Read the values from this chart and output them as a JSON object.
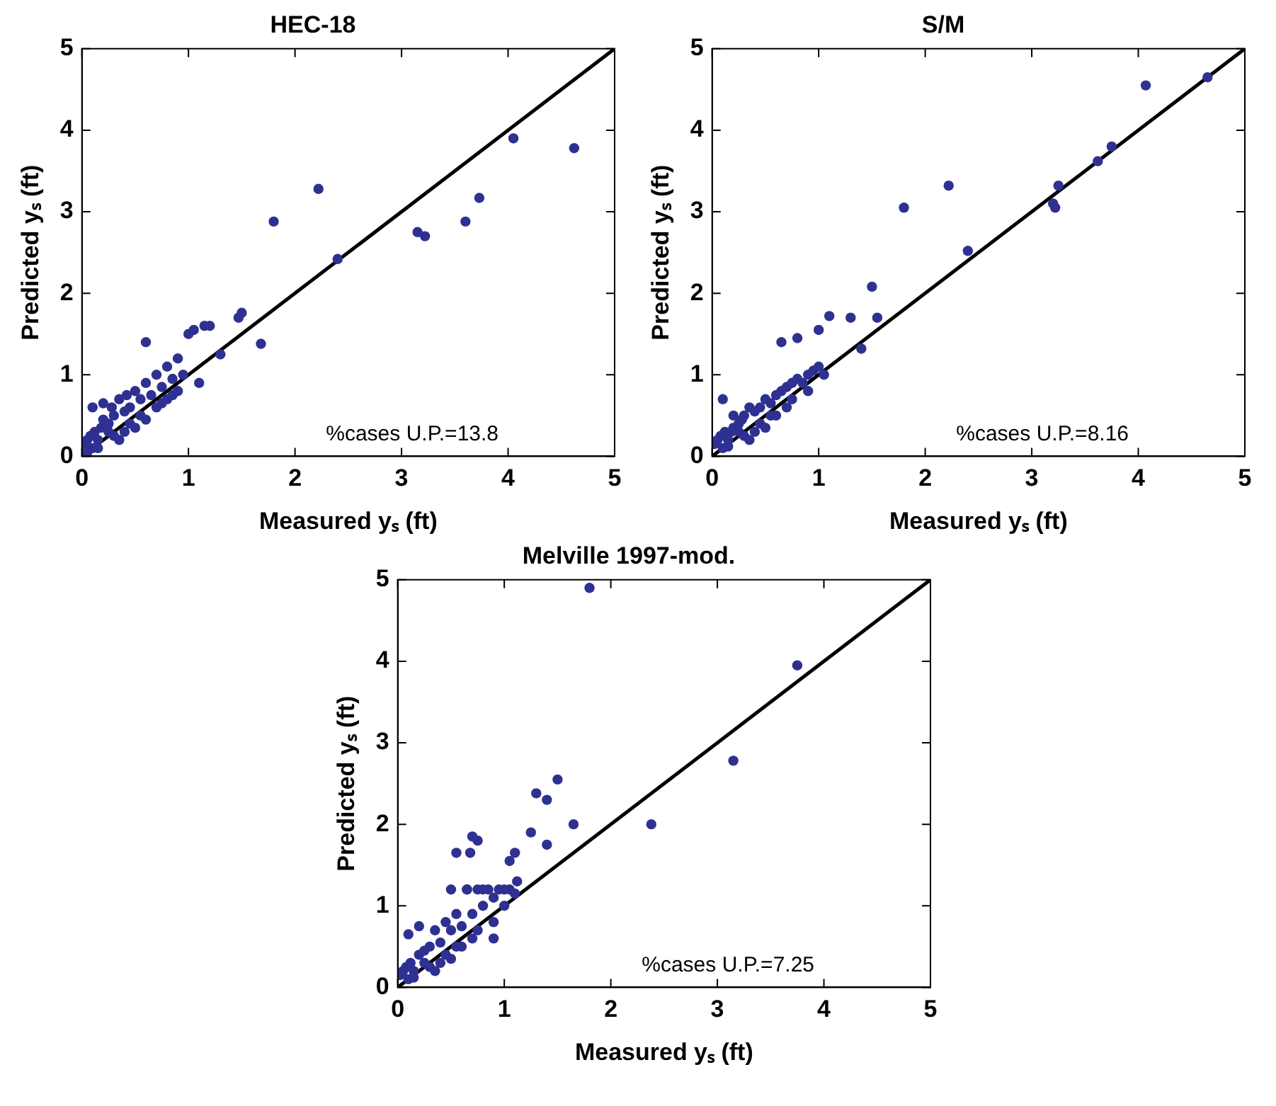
{
  "chart_data": [
    {
      "type": "scatter",
      "title": "HEC-18",
      "xlabel": "Measured yₛ (ft)",
      "ylabel": "Predicted yₛ (ft)",
      "xlim": [
        0,
        5
      ],
      "ylim": [
        0,
        5
      ],
      "xticks": [
        0,
        1,
        2,
        3,
        4,
        5
      ],
      "yticks": [
        0,
        1,
        2,
        3,
        4,
        5
      ],
      "grid": false,
      "marker": "circle",
      "annotations": [
        "%cases U.P.=13.8"
      ],
      "series": [
        {
          "type": "scatter",
          "color": "#2e3192",
          "x": [
            4.05,
            4.62,
            2.22,
            1.8,
            3.73,
            3.6,
            3.15,
            3.22,
            2.4,
            1.5,
            1.47,
            1.15,
            1.05,
            0.6,
            1.68,
            1.3,
            0.02,
            0.05,
            0.08,
            0.1,
            0.12,
            0.15,
            0.18,
            0.2,
            0.25,
            0.28,
            0.3,
            0.35,
            0.4,
            0.42,
            0.45,
            0.5,
            0.55,
            0.6,
            0.65,
            0.7,
            0.75,
            0.8,
            0.85,
            0.9,
            0.95,
            1.0,
            0.3,
            0.45,
            0.55,
            0.7,
            0.8,
            0.9,
            1.1,
            1.2,
            0.15,
            0.25,
            0.35,
            0.6,
            0.75,
            0.85,
            0.5,
            0.4,
            0.1,
            0.2,
            0.05
          ],
          "values": [
            3.9,
            3.78,
            3.28,
            2.88,
            3.17,
            2.88,
            2.75,
            2.7,
            2.42,
            1.76,
            1.7,
            1.6,
            1.55,
            1.4,
            1.38,
            1.25,
            0.15,
            0.2,
            0.25,
            0.1,
            0.3,
            0.2,
            0.35,
            0.45,
            0.4,
            0.6,
            0.5,
            0.7,
            0.55,
            0.75,
            0.6,
            0.8,
            0.7,
            0.9,
            0.75,
            1.0,
            0.85,
            1.1,
            0.95,
            1.2,
            1.0,
            1.5,
            0.25,
            0.4,
            0.5,
            0.6,
            0.7,
            0.8,
            0.9,
            1.6,
            0.1,
            0.3,
            0.2,
            0.45,
            0.65,
            0.75,
            0.35,
            0.3,
            0.6,
            0.65,
            0.05
          ]
        },
        {
          "type": "line",
          "color": "#000000",
          "line_style": "solid",
          "marker": "none",
          "x": [
            0,
            5
          ],
          "values": [
            0,
            5
          ]
        }
      ]
    },
    {
      "type": "scatter",
      "title": "S/M",
      "xlabel": "Measured yₛ (ft)",
      "ylabel": "Predicted yₛ (ft)",
      "xlim": [
        0,
        5
      ],
      "ylim": [
        0,
        5
      ],
      "xticks": [
        0,
        1,
        2,
        3,
        4,
        5
      ],
      "yticks": [
        0,
        1,
        2,
        3,
        4,
        5
      ],
      "grid": false,
      "marker": "circle",
      "annotations": [
        "%cases U.P.=8.16"
      ],
      "series": [
        {
          "type": "scatter",
          "color": "#2e3192",
          "x": [
            4.65,
            4.07,
            3.75,
            3.62,
            3.25,
            3.2,
            3.22,
            2.22,
            1.8,
            2.4,
            1.5,
            1.1,
            1.0,
            0.65,
            1.4,
            1.3,
            1.55,
            0.8,
            0.02,
            0.05,
            0.08,
            0.1,
            0.12,
            0.15,
            0.18,
            0.2,
            0.25,
            0.28,
            0.3,
            0.35,
            0.4,
            0.45,
            0.5,
            0.55,
            0.6,
            0.65,
            0.7,
            0.75,
            0.8,
            0.85,
            0.9,
            0.95,
            1.0,
            1.05,
            0.3,
            0.45,
            0.55,
            0.7,
            0.9,
            0.15,
            0.25,
            0.35,
            0.6,
            0.75,
            0.5,
            0.4,
            0.1,
            0.2
          ],
          "values": [
            4.65,
            4.55,
            3.8,
            3.62,
            3.32,
            3.1,
            3.05,
            3.32,
            3.05,
            2.52,
            2.08,
            1.72,
            1.55,
            1.4,
            1.32,
            1.7,
            1.7,
            1.45,
            0.15,
            0.2,
            0.25,
            0.1,
            0.3,
            0.2,
            0.3,
            0.35,
            0.4,
            0.45,
            0.5,
            0.6,
            0.55,
            0.6,
            0.7,
            0.65,
            0.75,
            0.8,
            0.85,
            0.9,
            0.95,
            0.9,
            1.0,
            1.05,
            1.1,
            1.0,
            0.25,
            0.4,
            0.5,
            0.6,
            0.8,
            0.12,
            0.3,
            0.2,
            0.5,
            0.7,
            0.35,
            0.3,
            0.7,
            0.5
          ]
        },
        {
          "type": "line",
          "color": "#000000",
          "line_style": "solid",
          "marker": "none",
          "x": [
            0,
            5
          ],
          "values": [
            0,
            5
          ]
        }
      ]
    },
    {
      "type": "scatter",
      "title": "Melville 1997-mod.",
      "xlabel": "Measured yₛ (ft)",
      "ylabel": "Predicted yₛ (ft)",
      "xlim": [
        0,
        5
      ],
      "ylim": [
        0,
        5
      ],
      "xticks": [
        0,
        1,
        2,
        3,
        4,
        5
      ],
      "yticks": [
        0,
        1,
        2,
        3,
        4,
        5
      ],
      "grid": false,
      "marker": "circle",
      "annotations": [
        "%cases U.P.=7.25"
      ],
      "series": [
        {
          "type": "scatter",
          "color": "#2e3192",
          "x": [
            1.8,
            3.75,
            3.15,
            2.38,
            1.5,
            1.3,
            1.4,
            1.65,
            1.25,
            1.4,
            0.75,
            0.7,
            0.68,
            1.1,
            1.05,
            0.55,
            1.12,
            0.9,
            0.02,
            0.05,
            0.08,
            0.1,
            0.12,
            0.15,
            0.2,
            0.25,
            0.3,
            0.35,
            0.4,
            0.45,
            0.5,
            0.55,
            0.6,
            0.65,
            0.7,
            0.75,
            0.8,
            0.85,
            0.9,
            0.95,
            1.0,
            1.05,
            1.1,
            0.3,
            0.45,
            0.55,
            0.7,
            0.9,
            0.15,
            0.25,
            0.35,
            0.6,
            0.75,
            0.5,
            0.4,
            0.1,
            0.2,
            0.5,
            0.65,
            0.8,
            1.0
          ],
          "values": [
            4.9,
            3.95,
            2.78,
            2.0,
            2.55,
            2.38,
            2.3,
            2.0,
            1.9,
            1.75,
            1.8,
            1.85,
            1.65,
            1.65,
            1.55,
            1.65,
            1.3,
            0.6,
            0.15,
            0.2,
            0.25,
            0.1,
            0.3,
            0.2,
            0.4,
            0.45,
            0.5,
            0.7,
            0.55,
            0.8,
            0.7,
            0.9,
            0.75,
            1.2,
            0.9,
            1.2,
            1.0,
            1.2,
            1.1,
            1.2,
            1.0,
            1.2,
            1.15,
            0.25,
            0.4,
            0.5,
            0.6,
            0.8,
            0.12,
            0.3,
            0.2,
            0.5,
            0.7,
            0.35,
            0.3,
            0.65,
            0.75,
            1.2,
            1.2,
            1.2,
            1.2
          ]
        },
        {
          "type": "line",
          "color": "#000000",
          "line_style": "solid",
          "marker": "none",
          "x": [
            0,
            5
          ],
          "values": [
            0,
            5
          ]
        }
      ]
    }
  ]
}
